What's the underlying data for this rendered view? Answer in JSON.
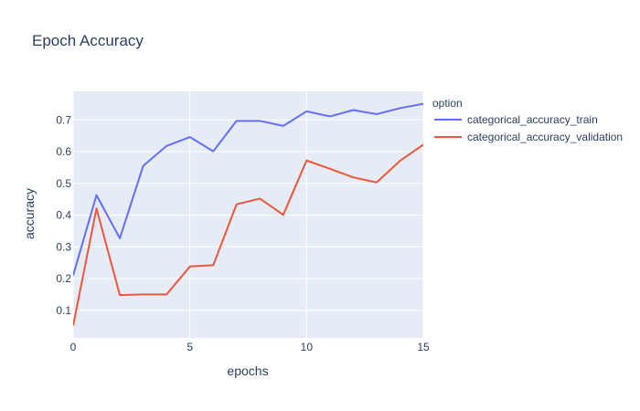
{
  "chart_data": {
    "type": "line",
    "title": "Epoch Accuracy",
    "xlabel": "epochs",
    "ylabel": "accuracy",
    "xlim": [
      0,
      15
    ],
    "ylim": [
      0.013,
      0.79
    ],
    "x_ticks": [
      0,
      5,
      10,
      15
    ],
    "y_ticks": [
      0.1,
      0.2,
      0.3,
      0.4,
      0.5,
      0.6,
      0.7
    ],
    "grid": true,
    "legend": {
      "title": "option",
      "placement": "right"
    },
    "x": [
      0,
      1,
      2,
      3,
      4,
      5,
      6,
      7,
      8,
      9,
      10,
      11,
      12,
      13,
      14,
      15
    ],
    "series": [
      {
        "name": "categorical_accuracy_train",
        "color": "#636efa",
        "values": [
          0.21,
          0.463,
          0.327,
          0.555,
          0.618,
          0.646,
          0.601,
          0.697,
          0.697,
          0.681,
          0.727,
          0.711,
          0.731,
          0.718,
          0.737,
          0.751
        ]
      },
      {
        "name": "categorical_accuracy_validation",
        "color": "#ef553b",
        "values": [
          0.052,
          0.421,
          0.148,
          0.15,
          0.15,
          0.238,
          0.242,
          0.434,
          0.452,
          0.401,
          0.572,
          0.546,
          0.519,
          0.503,
          0.571,
          0.622
        ]
      }
    ]
  },
  "colors": {
    "plot_background": "#e5ecf6",
    "grid": "#ffffff",
    "text": "#2a3f5f"
  }
}
